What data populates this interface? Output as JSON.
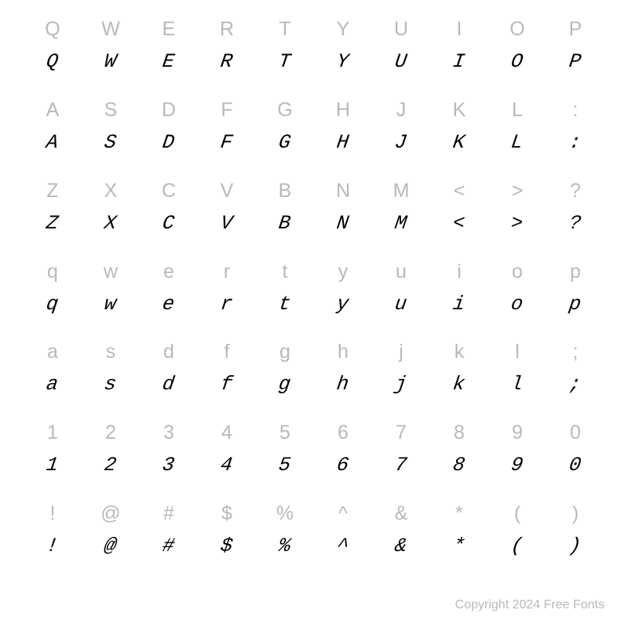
{
  "colors": {
    "reference": "#b9b9b9",
    "sample": "#000000",
    "background": "#ffffff",
    "footer": "#b9b9b9"
  },
  "typography": {
    "ref_fontsize": 25,
    "sample_fontsize": 25,
    "ref_family": "Arial, sans-serif",
    "sample_family": "Courier New, monospace",
    "sample_style": "italic",
    "footer_fontsize": 16
  },
  "grid": {
    "columns": 10,
    "rows": 7
  },
  "rows": [
    [
      "Q",
      "W",
      "E",
      "R",
      "T",
      "Y",
      "U",
      "I",
      "O",
      "P"
    ],
    [
      "A",
      "S",
      "D",
      "F",
      "G",
      "H",
      "J",
      "K",
      "L",
      ":"
    ],
    [
      "Z",
      "X",
      "C",
      "V",
      "B",
      "N",
      "M",
      "<",
      ">",
      "?"
    ],
    [
      "q",
      "w",
      "e",
      "r",
      "t",
      "y",
      "u",
      "i",
      "o",
      "p"
    ],
    [
      "a",
      "s",
      "d",
      "f",
      "g",
      "h",
      "j",
      "k",
      "l",
      ";"
    ],
    [
      "1",
      "2",
      "3",
      "4",
      "5",
      "6",
      "7",
      "8",
      "9",
      "0"
    ],
    [
      "!",
      "@",
      "#",
      "$",
      "%",
      "^",
      "&",
      "*",
      "(",
      ")"
    ]
  ],
  "footer": "Copyright 2024 Free Fonts"
}
